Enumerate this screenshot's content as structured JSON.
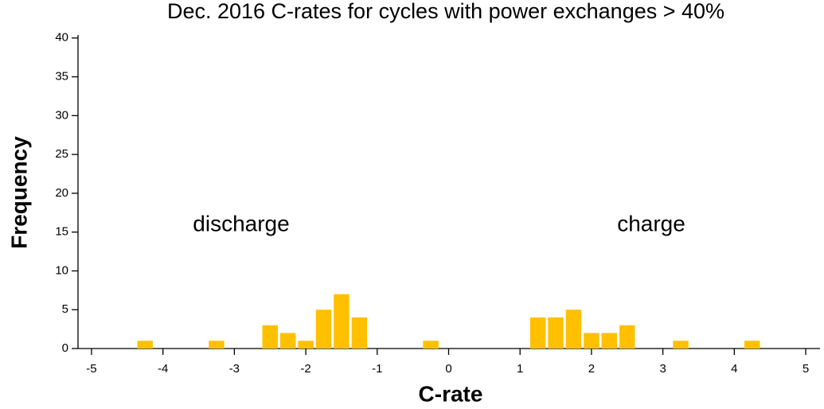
{
  "chart_data": {
    "type": "histogram",
    "title": "Dec. 2016 C-rates for cycles with power exchanges > 40%",
    "x_label": "C-rate",
    "y_label": "Frequency",
    "annotations": [
      "discharge",
      "charge"
    ],
    "bins": [
      -4.375,
      -4.125,
      -3.875,
      -3.625,
      -3.375,
      -3.125,
      -2.875,
      -2.625,
      -2.375,
      -2.125,
      -1.875,
      -1.625,
      -1.375,
      -1.125,
      -0.875,
      -0.625,
      -0.375,
      -0.125,
      0.125,
      0.375,
      0.625,
      0.875,
      1.125,
      1.375,
      1.625,
      1.875,
      2.125,
      2.375,
      2.625,
      2.875,
      3.125,
      3.375,
      3.625,
      3.875,
      4.125,
      4.375
    ],
    "counts": [
      1,
      0,
      0,
      0,
      1,
      0,
      0,
      3,
      2,
      1,
      5,
      7,
      4,
      0,
      0,
      0,
      1,
      0,
      0,
      0,
      0,
      0,
      4,
      4,
      5,
      2,
      2,
      3,
      0,
      0,
      1,
      0,
      0,
      0,
      1
    ],
    "color": "#ffc000",
    "xlim": [
      -5.2,
      5.2
    ],
    "xticks": [
      -5,
      -4,
      -3,
      -2,
      -1,
      0,
      1,
      2,
      3,
      4,
      5
    ],
    "ylim": [
      0,
      41
    ],
    "yticks": [
      0,
      5,
      10,
      15,
      20,
      25,
      30,
      35,
      40
    ]
  }
}
